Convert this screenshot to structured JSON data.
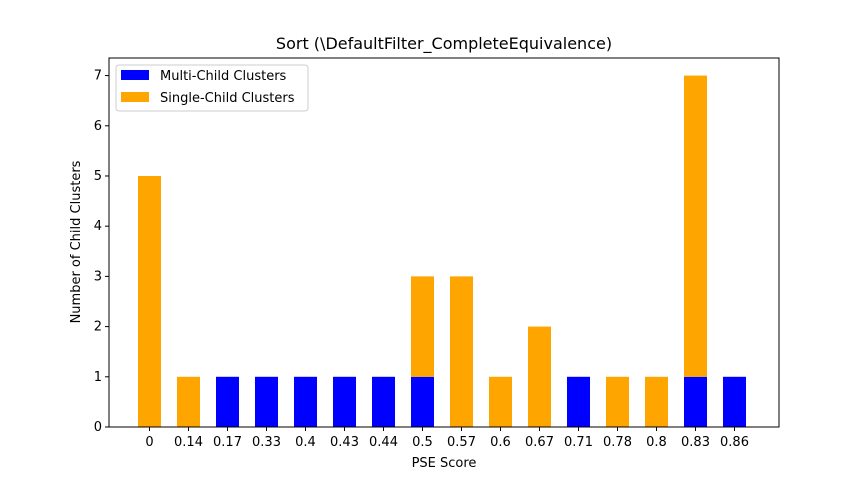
{
  "chart_data": {
    "type": "bar",
    "stacked": true,
    "title": "Sort (\\DefaultFilter_CompleteEquivalence)",
    "xlabel": "PSE Score",
    "ylabel": "Number of Child Clusters",
    "categories": [
      "0",
      "0.14",
      "0.17",
      "0.33",
      "0.4",
      "0.43",
      "0.44",
      "0.5",
      "0.57",
      "0.6",
      "0.67",
      "0.71",
      "0.78",
      "0.8",
      "0.83",
      "0.86"
    ],
    "series": [
      {
        "name": "Multi-Child Clusters",
        "color": "#0000ff",
        "values": [
          0,
          0,
          1,
          1,
          1,
          1,
          1,
          1,
          0,
          0,
          0,
          1,
          0,
          0,
          1,
          1
        ]
      },
      {
        "name": "Single-Child Clusters",
        "color": "#ffa500",
        "values": [
          5,
          1,
          0,
          0,
          0,
          0,
          0,
          2,
          3,
          1,
          2,
          0,
          1,
          1,
          6,
          0
        ]
      }
    ],
    "ylim": [
      0,
      7.35
    ],
    "yticks": [
      0,
      1,
      2,
      3,
      4,
      5,
      6,
      7
    ],
    "grid": false,
    "legend_position": "upper-left"
  }
}
